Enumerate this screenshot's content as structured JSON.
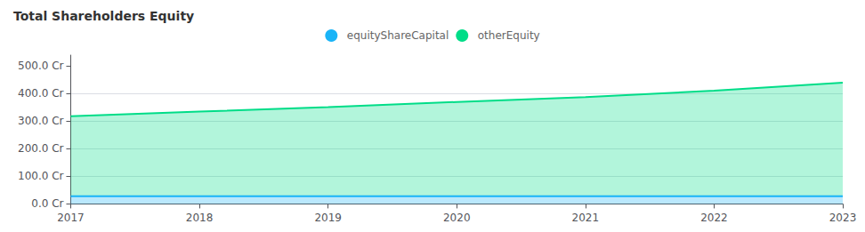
{
  "chart_data": {
    "type": "area",
    "title": "Total Shareholders Equity",
    "categories": [
      "2017",
      "2018",
      "2019",
      "2020",
      "2021",
      "2022",
      "2023"
    ],
    "series": [
      {
        "name": "equityShareCapital",
        "color": "#1ab4f7",
        "values": [
          28,
          28,
          28,
          28,
          28,
          28,
          28
        ]
      },
      {
        "name": "otherEquity",
        "color": "#00dd88",
        "values": [
          290,
          307,
          323,
          342,
          360,
          383,
          412
        ]
      }
    ],
    "stacked": true,
    "ylim": [
      -5,
      540
    ],
    "yticks": [
      {
        "value": 0,
        "label": "0.0 Cr"
      },
      {
        "value": 100,
        "label": "100.0 Cr"
      },
      {
        "value": 200,
        "label": "200.0 Cr"
      },
      {
        "value": 300,
        "label": "300.0 Cr"
      },
      {
        "value": 400,
        "label": "400.0 Cr"
      },
      {
        "value": 500,
        "label": "500.0 Cr"
      }
    ],
    "grid": true,
    "legend": "top"
  }
}
